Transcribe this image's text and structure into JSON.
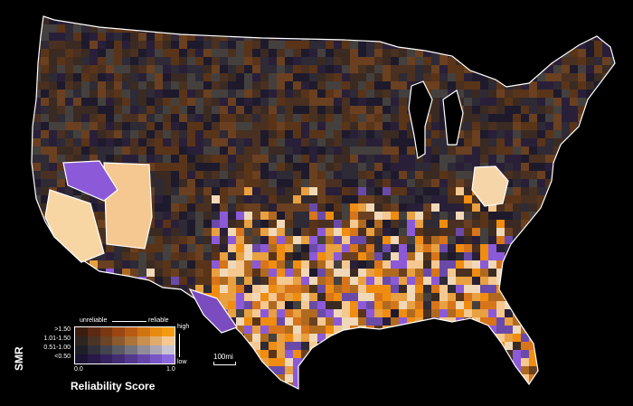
{
  "legend": {
    "smr_title": "SMR",
    "rows": [
      ">1.50",
      "1.01-1.50",
      "0.51-1.00",
      "<0.50"
    ],
    "unreliable_label": "unreliable",
    "reliable_label": "reliable",
    "high_label": "high",
    "low_label": "low",
    "tick_min": "0.0",
    "tick_max": "1.0",
    "axis_title": "Reliability Score",
    "colors": [
      [
        "#3b1d10",
        "#5a2a12",
        "#7a3812",
        "#9a4612",
        "#b85a12",
        "#d07412",
        "#e88a10",
        "#f59a10"
      ],
      [
        "#2e2420",
        "#4c3424",
        "#6c4426",
        "#8c5a2c",
        "#ac7438",
        "#c8904e",
        "#e0ac6c",
        "#f4c890"
      ],
      [
        "#1e1e26",
        "#30303a",
        "#44444e",
        "#5a5a66",
        "#74727e",
        "#908c9a",
        "#aaa6b6",
        "#c8c4d4"
      ],
      [
        "#1c1234",
        "#281a48",
        "#34225c",
        "#432c74",
        "#53388c",
        "#6546a8",
        "#7856c4",
        "#8c68de"
      ]
    ]
  },
  "scale_label": "100mi",
  "colors": {
    "background": "#000000",
    "state_border": "#ffffff",
    "dark_base": "#2a1f38",
    "orange_high": "#f08c10",
    "peach": "#f4c890",
    "purple_low": "#8c5ad8"
  }
}
